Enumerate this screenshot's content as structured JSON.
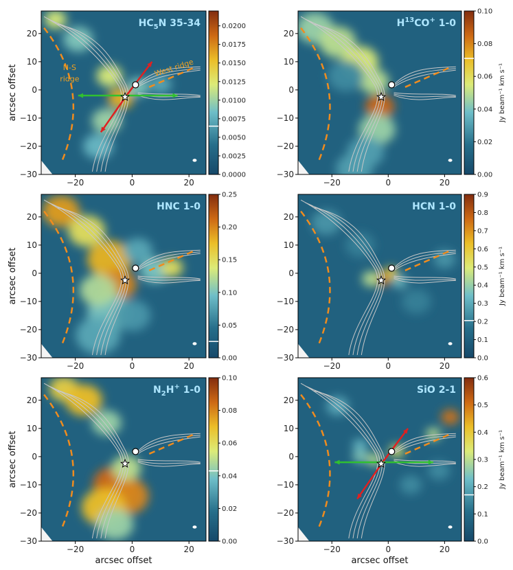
{
  "colors": {
    "background_map": "#1c5a78",
    "ridge": "#f08c1e",
    "contour": "#c8c8c8",
    "outflow_red": "#e02020",
    "outflow_green": "#30c030",
    "title": "#aee6ff",
    "annotation": "#f0a020"
  },
  "chart_data": [
    {
      "type": "heatmap",
      "id": "hc5n",
      "title_main": "HC",
      "title_sub": "5",
      "title_rest": "N 35-34",
      "xlabel": "",
      "ylabel": "arcsec offset",
      "xlim": [
        -32,
        26
      ],
      "ylim": [
        -30,
        28
      ],
      "xticks": [
        -20,
        0,
        20
      ],
      "yticks": [
        -30,
        -20,
        -10,
        0,
        10,
        20
      ],
      "colorbar": {
        "min": 0,
        "max": 0.022,
        "ticks": [
          "0.0000",
          "0.0025",
          "0.0050",
          "0.0075",
          "0.0100",
          "0.0125",
          "0.0150",
          "0.0175",
          "0.0200"
        ],
        "tick_values": [
          0,
          0.0025,
          0.005,
          0.0075,
          0.01,
          0.0125,
          0.015,
          0.0175,
          0.02
        ],
        "label": "",
        "marker": 0.0065
      },
      "annotations": [
        {
          "text": "N-S",
          "x": -22,
          "y": 7
        },
        {
          "text": "ridge",
          "x": -22,
          "y": 3
        },
        {
          "text": "West ridge",
          "x": 15,
          "y": 7
        }
      ],
      "show_arrows": true,
      "blobs": [
        {
          "x": -27,
          "y": 25,
          "r": 3,
          "v": 0.012
        },
        {
          "x": -19,
          "y": 18,
          "r": 4,
          "v": 0.009
        },
        {
          "x": -8,
          "y": 5,
          "r": 3.5,
          "v": 0.012
        },
        {
          "x": -4,
          "y": -3,
          "r": 3.5,
          "v": 0.016
        },
        {
          "x": -9,
          "y": -11,
          "r": 4,
          "v": 0.01
        },
        {
          "x": -12,
          "y": -20,
          "r": 4,
          "v": 0.008
        },
        {
          "x": 2,
          "y": 1,
          "r": 3,
          "v": 0.009
        },
        {
          "x": 10,
          "y": 2,
          "r": 3,
          "v": 0.007
        }
      ]
    },
    {
      "type": "heatmap",
      "id": "h13co",
      "title_main": "H",
      "title_sup": "13",
      "title_rest": "CO",
      "title_sup2": "+",
      "title_tail": " 1-0",
      "xlabel": "",
      "ylabel": "",
      "xlim": [
        -32,
        26
      ],
      "ylim": [
        -30,
        28
      ],
      "xticks": [
        -20,
        0,
        20
      ],
      "yticks": [
        -30,
        -20,
        -10,
        0,
        10,
        20
      ],
      "colorbar": {
        "min": 0,
        "max": 0.1,
        "ticks": [
          "0.00",
          "0.02",
          "0.04",
          "0.06",
          "0.08",
          "0.10"
        ],
        "tick_values": [
          0,
          0.02,
          0.04,
          0.06,
          0.08,
          0.1
        ],
        "label": "Jy beam⁻¹ km s⁻¹",
        "marker": 0.071
      },
      "annotations": [],
      "show_arrows": false,
      "blobs": [
        {
          "x": -26,
          "y": 22,
          "r": 5,
          "v": 0.045
        },
        {
          "x": -18,
          "y": 17,
          "r": 5,
          "v": 0.05
        },
        {
          "x": -10,
          "y": 10,
          "r": 5,
          "v": 0.055
        },
        {
          "x": -5,
          "y": 3,
          "r": 4,
          "v": 0.05
        },
        {
          "x": -3,
          "y": -6,
          "r": 4,
          "v": 0.085
        },
        {
          "x": -4,
          "y": -14,
          "r": 5,
          "v": 0.045
        },
        {
          "x": -8,
          "y": -22,
          "r": 5,
          "v": 0.03
        },
        {
          "x": -15,
          "y": 5,
          "r": 5,
          "v": 0.025
        },
        {
          "x": -12,
          "y": -28,
          "r": 5,
          "v": 0.03
        }
      ]
    },
    {
      "type": "heatmap",
      "id": "hnc",
      "title_main": "HNC 1-0",
      "xlabel": "",
      "ylabel": "arcsec offset",
      "xlim": [
        -32,
        26
      ],
      "ylim": [
        -30,
        28
      ],
      "xticks": [
        -20,
        0,
        20
      ],
      "yticks": [
        -30,
        -20,
        -10,
        0,
        10,
        20
      ],
      "colorbar": {
        "min": 0,
        "max": 0.25,
        "ticks": [
          "0.00",
          "0.05",
          "0.10",
          "0.15",
          "0.20",
          "0.25"
        ],
        "tick_values": [
          0,
          0.05,
          0.1,
          0.15,
          0.2,
          0.25
        ],
        "label": "",
        "marker": 0.025
      },
      "annotations": [],
      "show_arrows": false,
      "blobs": [
        {
          "x": -25,
          "y": 22,
          "r": 5,
          "v": 0.19
        },
        {
          "x": -16,
          "y": 15,
          "r": 5,
          "v": 0.15
        },
        {
          "x": -8,
          "y": 5,
          "r": 6,
          "v": 0.18
        },
        {
          "x": -5,
          "y": -4,
          "r": 5,
          "v": 0.2
        },
        {
          "x": -8,
          "y": -14,
          "r": 6,
          "v": 0.1
        },
        {
          "x": -12,
          "y": -22,
          "r": 6,
          "v": 0.08
        },
        {
          "x": 8,
          "y": 1,
          "r": 4,
          "v": 0.1
        },
        {
          "x": 14,
          "y": 2,
          "r": 3,
          "v": 0.15
        },
        {
          "x": 2,
          "y": 8,
          "r": 4,
          "v": 0.08
        },
        {
          "x": 0,
          "y": -15,
          "r": 5,
          "v": 0.07
        },
        {
          "x": -12,
          "y": -6,
          "r": 5,
          "v": 0.12
        }
      ]
    },
    {
      "type": "heatmap",
      "id": "hcn",
      "title_main": "HCN 1-0",
      "xlabel": "",
      "ylabel": "",
      "xlim": [
        -32,
        26
      ],
      "ylim": [
        -30,
        28
      ],
      "xticks": [
        -20,
        0,
        20
      ],
      "yticks": [
        -30,
        -20,
        -10,
        0,
        10,
        20
      ],
      "colorbar": {
        "min": 0,
        "max": 0.9,
        "ticks": [
          "0.0",
          "0.1",
          "0.2",
          "0.3",
          "0.4",
          "0.5",
          "0.6",
          "0.7",
          "0.8",
          "0.9"
        ],
        "tick_values": [
          0,
          0.1,
          0.2,
          0.3,
          0.4,
          0.5,
          0.6,
          0.7,
          0.8,
          0.9
        ],
        "label": "Jy beam⁻¹ km s⁻¹",
        "marker": 0.205
      },
      "annotations": [],
      "show_arrows": false,
      "blobs": [
        {
          "x": -2,
          "y": -2,
          "r": 2.5,
          "v": 0.8
        },
        {
          "x": 1,
          "y": 0,
          "r": 2,
          "v": 0.6
        },
        {
          "x": -6,
          "y": -2,
          "r": 2.5,
          "v": 0.45
        },
        {
          "x": 4,
          "y": -3,
          "r": 2,
          "v": 0.35
        },
        {
          "x": -22,
          "y": 18,
          "r": 4,
          "v": 0.25
        },
        {
          "x": 20,
          "y": 5,
          "r": 3,
          "v": 0.25
        },
        {
          "x": -10,
          "y": 10,
          "r": 4,
          "v": 0.2
        },
        {
          "x": 10,
          "y": -10,
          "r": 4,
          "v": 0.2
        }
      ]
    },
    {
      "type": "heatmap",
      "id": "n2h",
      "title_main": "N",
      "title_sub": "2",
      "title_rest": "H",
      "title_sup2": "+",
      "title_tail": " 1-0",
      "xlabel": "arcsec offset",
      "ylabel": "arcsec offset",
      "xlim": [
        -32,
        26
      ],
      "ylim": [
        -30,
        28
      ],
      "xticks": [
        -20,
        0,
        20
      ],
      "yticks": [
        -30,
        -20,
        -10,
        0,
        10,
        20
      ],
      "colorbar": {
        "min": 0,
        "max": 0.1,
        "ticks": [
          "0.00",
          "0.02",
          "0.04",
          "0.06",
          "0.08",
          "0.10"
        ],
        "tick_values": [
          0,
          0.02,
          0.04,
          0.06,
          0.08,
          0.1
        ],
        "label": "",
        "marker": 0.043
      },
      "annotations": [],
      "show_arrows": false,
      "blobs": [
        {
          "x": -24,
          "y": 24,
          "r": 4,
          "v": 0.065
        },
        {
          "x": -17,
          "y": 20,
          "r": 5,
          "v": 0.07
        },
        {
          "x": -9,
          "y": 12,
          "r": 4,
          "v": 0.045
        },
        {
          "x": -6,
          "y": -10,
          "r": 6,
          "v": 0.085
        },
        {
          "x": -2,
          "y": -14,
          "r": 6,
          "v": 0.08
        },
        {
          "x": -10,
          "y": -18,
          "r": 6,
          "v": 0.07
        },
        {
          "x": -6,
          "y": -24,
          "r": 5,
          "v": 0.045
        },
        {
          "x": -2,
          "y": -4,
          "r": 4,
          "v": 0.05
        }
      ]
    },
    {
      "type": "heatmap",
      "id": "sio",
      "title_main": "SiO 2-1",
      "xlabel": "arcsec offset",
      "ylabel": "",
      "xlim": [
        -32,
        26
      ],
      "ylim": [
        -30,
        28
      ],
      "xticks": [
        -20,
        0,
        20
      ],
      "yticks": [
        -30,
        -20,
        -10,
        0,
        10,
        20
      ],
      "colorbar": {
        "min": 0,
        "max": 0.6,
        "ticks": [
          "0.0",
          "0.1",
          "0.2",
          "0.3",
          "0.4",
          "0.5",
          "0.6"
        ],
        "tick_values": [
          0,
          0.1,
          0.2,
          0.3,
          0.4,
          0.5,
          0.6
        ],
        "label": "Jy beam⁻¹ km s⁻¹",
        "marker": 0.17
      },
      "annotations": [],
      "show_arrows": true,
      "blobs": [
        {
          "x": 22,
          "y": 14,
          "r": 2.5,
          "v": 0.5
        },
        {
          "x": 16,
          "y": 8,
          "r": 2,
          "v": 0.3
        },
        {
          "x": 3,
          "y": 2,
          "r": 2,
          "v": 0.35
        },
        {
          "x": -5,
          "y": -1,
          "r": 2,
          "v": 0.3
        },
        {
          "x": -10,
          "y": 0,
          "r": 2,
          "v": 0.25
        },
        {
          "x": -10,
          "y": 4,
          "r": 2,
          "v": 0.22
        },
        {
          "x": -18,
          "y": 18,
          "r": 3,
          "v": 0.2
        },
        {
          "x": 8,
          "y": -10,
          "r": 3,
          "v": 0.15
        },
        {
          "x": 18,
          "y": -5,
          "r": 3,
          "v": 0.15
        }
      ]
    }
  ]
}
